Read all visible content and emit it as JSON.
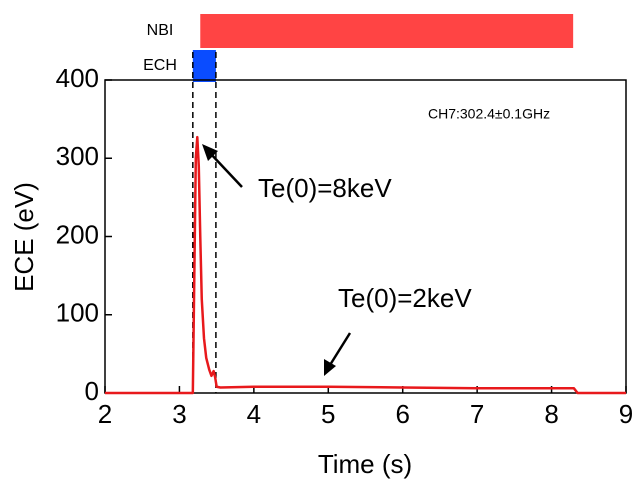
{
  "chart_data": {
    "type": "line",
    "xlabel": "Time (s)",
    "ylabel": "ECE (eV)",
    "x": [
      2,
      3.0,
      3.18,
      3.2,
      3.22,
      3.24,
      3.26,
      3.28,
      3.3,
      3.33,
      3.36,
      3.4,
      3.43,
      3.46,
      3.48,
      3.5,
      3.55,
      4,
      5,
      6,
      7,
      8,
      8.3,
      8.35,
      9
    ],
    "series": [
      {
        "color": "#e8191c",
        "values": [
          0,
          0,
          0,
          150,
          300,
          327,
          290,
          200,
          120,
          70,
          45,
          30,
          22,
          28,
          20,
          8,
          7,
          8,
          8,
          7,
          6,
          6,
          6,
          0,
          0
        ]
      }
    ],
    "xlim": [
      2,
      9
    ],
    "xticks": [
      2,
      3,
      4,
      5,
      6,
      7,
      8,
      9
    ],
    "ylim": [
      0,
      400
    ],
    "yticks": [
      0,
      100,
      200,
      300,
      400
    ],
    "grid": false,
    "heating": [
      {
        "name": "NBI",
        "start": 3.28,
        "end": 8.29,
        "color": "#ff4444"
      },
      {
        "name": "ECH",
        "start": 3.18,
        "end": 3.49,
        "color": "#0a4cff"
      }
    ],
    "annotations": [
      "CH7:302.4±0.1GHz",
      "Te(0)=8keV",
      "Te(0)=2keV"
    ]
  }
}
